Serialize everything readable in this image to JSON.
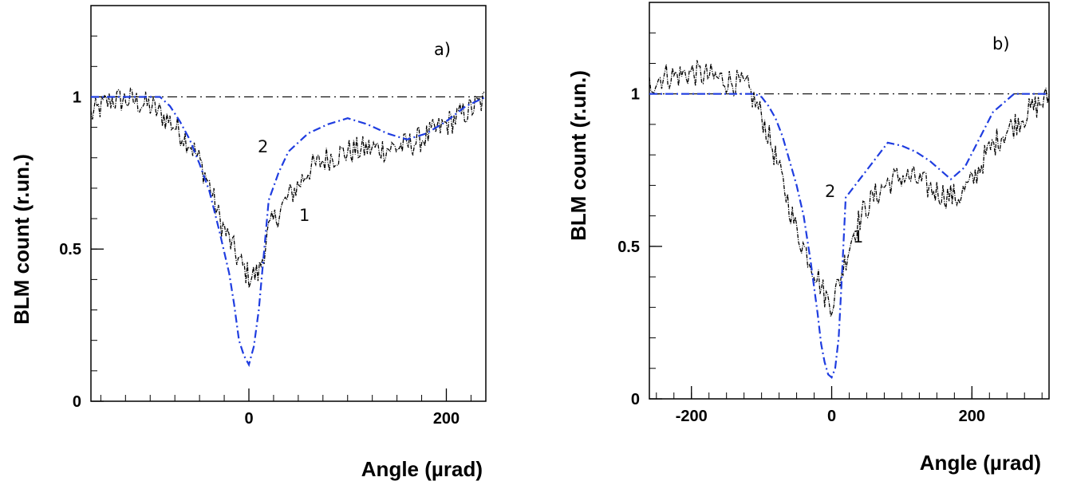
{
  "chart_data": [
    {
      "type": "line",
      "panel_label": "a)",
      "xlabel": "Angle  (µrad)",
      "ylabel": "BLM count  (r.un.)",
      "xlim": [
        -160,
        240
      ],
      "ylim": [
        0,
        1.3
      ],
      "x_ticks": [
        {
          "value": 0,
          "label": "0"
        },
        {
          "value": 200,
          "label": "200"
        }
      ],
      "y_ticks": [
        {
          "value": 0,
          "label": "0"
        },
        {
          "value": 0.5,
          "label": "0.5"
        },
        {
          "value": 1,
          "label": "1"
        }
      ],
      "reference_line": 1.0,
      "series": [
        {
          "label": "1",
          "style": "noisy-data",
          "color": "#000000",
          "x": [
            -160,
            -140,
            -120,
            -100,
            -80,
            -60,
            -50,
            -40,
            -30,
            -20,
            -10,
            0,
            10,
            20,
            30,
            40,
            50,
            60,
            80,
            100,
            120,
            140,
            160,
            180,
            200,
            220,
            240
          ],
          "y": [
            0.94,
            0.99,
            0.99,
            0.97,
            0.92,
            0.85,
            0.79,
            0.71,
            0.6,
            0.53,
            0.46,
            0.41,
            0.42,
            0.56,
            0.62,
            0.67,
            0.71,
            0.76,
            0.8,
            0.82,
            0.83,
            0.83,
            0.84,
            0.87,
            0.91,
            0.95,
            0.99
          ]
        },
        {
          "label": "2",
          "style": "dash-dot",
          "color": "#1f3de0",
          "x": [
            -160,
            -120,
            -90,
            -80,
            -70,
            -60,
            -50,
            -40,
            -30,
            -20,
            -15,
            -10,
            -5,
            0,
            5,
            10,
            15,
            20,
            30,
            40,
            60,
            80,
            100,
            120,
            140,
            160,
            180,
            200,
            220,
            240
          ],
          "y": [
            1.0,
            1.0,
            1.0,
            0.97,
            0.92,
            0.86,
            0.78,
            0.69,
            0.56,
            0.42,
            0.32,
            0.2,
            0.15,
            0.12,
            0.18,
            0.3,
            0.48,
            0.66,
            0.75,
            0.82,
            0.88,
            0.91,
            0.93,
            0.91,
            0.88,
            0.86,
            0.88,
            0.92,
            0.97,
            1.0
          ]
        }
      ]
    },
    {
      "type": "line",
      "panel_label": "b)",
      "xlabel": "Angle  (µrad)",
      "ylabel": "BLM count  (r.un.)",
      "xlim": [
        -260,
        310
      ],
      "ylim": [
        0,
        1.3
      ],
      "x_ticks": [
        {
          "value": -200,
          "label": "-200"
        },
        {
          "value": 0,
          "label": "0"
        },
        {
          "value": 200,
          "label": "200"
        }
      ],
      "y_ticks": [
        {
          "value": 0,
          "label": "0"
        },
        {
          "value": 0.5,
          "label": "0.5"
        },
        {
          "value": 1,
          "label": "1"
        }
      ],
      "reference_line": 1.0,
      "series": [
        {
          "label": "1",
          "style": "noisy-data",
          "color": "#000000",
          "x": [
            -260,
            -240,
            -220,
            -200,
            -180,
            -160,
            -140,
            -120,
            -100,
            -90,
            -80,
            -70,
            -60,
            -50,
            -40,
            -30,
            -20,
            -10,
            0,
            10,
            20,
            30,
            40,
            50,
            60,
            80,
            100,
            120,
            140,
            160,
            180,
            200,
            220,
            240,
            260,
            280,
            310
          ],
          "y": [
            1.03,
            1.06,
            1.06,
            1.07,
            1.06,
            1.05,
            1.04,
            1.02,
            0.93,
            0.86,
            0.79,
            0.71,
            0.63,
            0.55,
            0.5,
            0.45,
            0.4,
            0.34,
            0.31,
            0.38,
            0.46,
            0.54,
            0.59,
            0.63,
            0.66,
            0.71,
            0.73,
            0.72,
            0.69,
            0.67,
            0.66,
            0.71,
            0.8,
            0.86,
            0.9,
            0.94,
            0.99
          ]
        },
        {
          "label": "2",
          "style": "dash-dot",
          "color": "#1f3de0",
          "x": [
            -260,
            -200,
            -120,
            -110,
            -100,
            -90,
            -80,
            -70,
            -60,
            -50,
            -40,
            -30,
            -20,
            -15,
            -10,
            -5,
            0,
            5,
            10,
            15,
            20,
            30,
            40,
            60,
            80,
            100,
            120,
            140,
            170,
            190,
            210,
            230,
            260,
            310
          ],
          "y": [
            1.0,
            1.0,
            1.0,
            1.0,
            0.99,
            0.96,
            0.92,
            0.86,
            0.78,
            0.7,
            0.6,
            0.45,
            0.28,
            0.18,
            0.12,
            0.08,
            0.07,
            0.1,
            0.2,
            0.42,
            0.66,
            0.69,
            0.72,
            0.78,
            0.84,
            0.83,
            0.81,
            0.78,
            0.72,
            0.76,
            0.85,
            0.94,
            1.0,
            1.0
          ]
        }
      ]
    }
  ]
}
